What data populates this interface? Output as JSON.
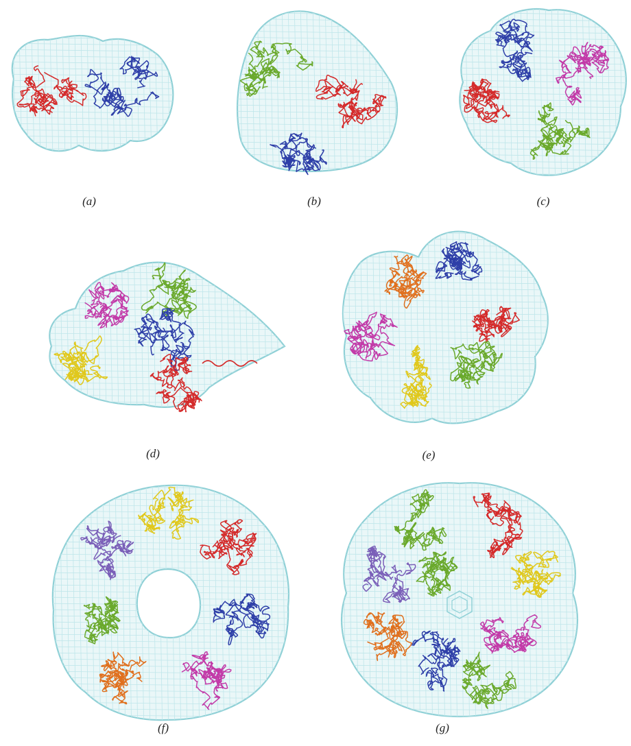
{
  "figure": {
    "panels": [
      {
        "id": "a",
        "caption": "(a)",
        "subunits": [
          "red",
          "blue"
        ]
      },
      {
        "id": "b",
        "caption": "(b)",
        "subunits": [
          "green",
          "red",
          "blue"
        ]
      },
      {
        "id": "c",
        "caption": "(c)",
        "subunits": [
          "blue",
          "magenta",
          "red",
          "green"
        ]
      },
      {
        "id": "d",
        "caption": "(d)",
        "subunits": [
          "green",
          "magenta",
          "blue",
          "yellow",
          "red"
        ]
      },
      {
        "id": "e",
        "caption": "(e)",
        "subunits": [
          "orange",
          "blue",
          "red",
          "green",
          "yellow",
          "magenta"
        ]
      },
      {
        "id": "f",
        "caption": "(f)",
        "subunits": [
          "yellow",
          "red",
          "blue",
          "magenta",
          "orange",
          "green",
          "purple"
        ]
      },
      {
        "id": "g",
        "caption": "(g)",
        "subunits": [
          "green",
          "red",
          "yellow",
          "magenta",
          "green",
          "blue",
          "orange",
          "purple"
        ]
      }
    ],
    "colors": {
      "red": "#d42a2a",
      "blue": "#2e3fa8",
      "green": "#6aa92c",
      "magenta": "#c23aa8",
      "yellow": "#e0c81c",
      "orange": "#e0701e",
      "purple": "#7a5fb8",
      "mesh_fill": "#eaf7f8",
      "mesh_stroke": "#8fd0d6"
    }
  }
}
